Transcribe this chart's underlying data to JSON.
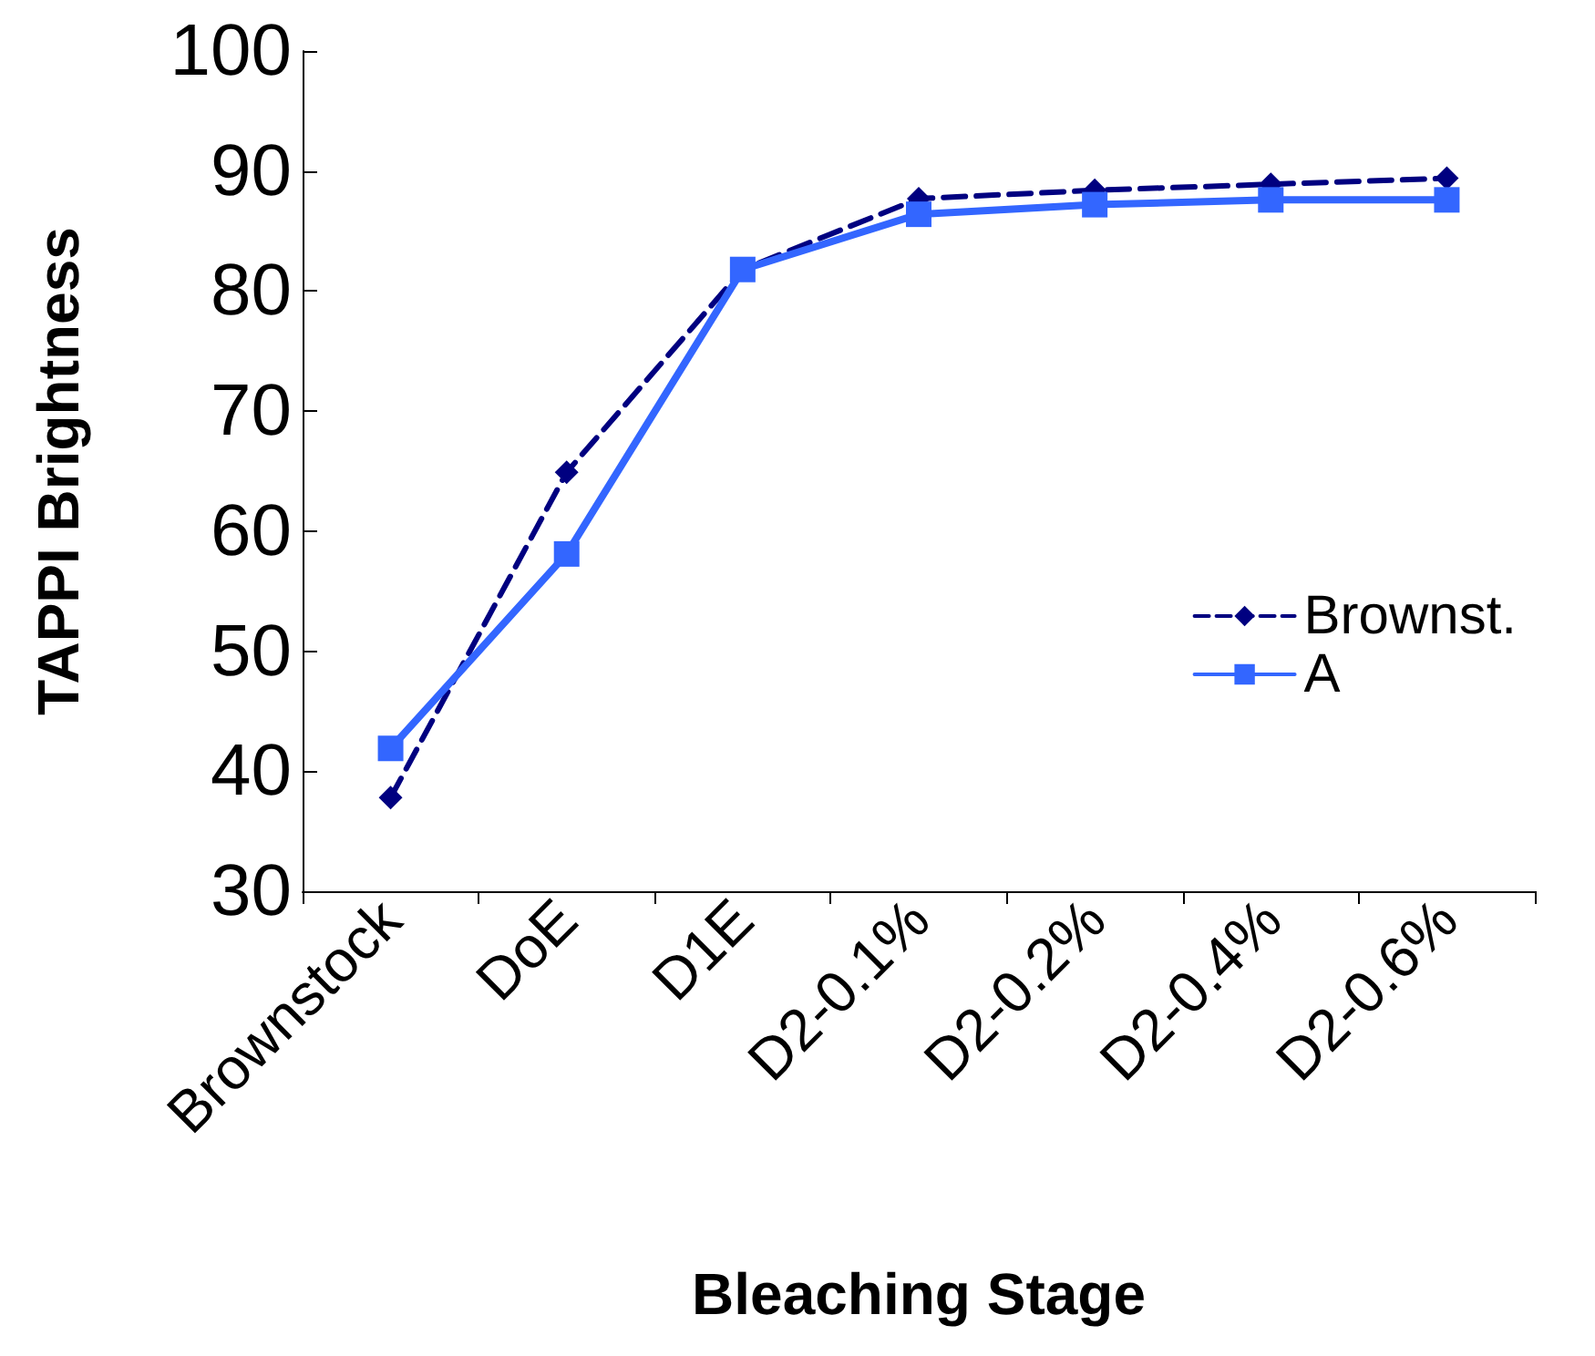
{
  "chart_data": {
    "type": "line",
    "xlabel": "Bleaching Stage",
    "ylabel": "TAPPI Brightness",
    "categories": [
      "Brownstock",
      "DoE",
      "D1E",
      "D2-0.1%",
      "D2-0.2%",
      "D2-0.4%",
      "D2-0.6%"
    ],
    "series": [
      {
        "name": "Brownst.",
        "color": "#000080",
        "values": [
          37.8,
          64.9,
          81.8,
          87.7,
          88.4,
          88.9,
          89.4
        ],
        "marker": "diamond",
        "line_style": "dashed"
      },
      {
        "name": "A",
        "color": "#3366ff",
        "values": [
          41.9,
          58.1,
          81.8,
          86.4,
          87.2,
          87.6,
          87.6
        ],
        "marker": "square",
        "line_style": "solid"
      }
    ],
    "ylim": [
      30,
      100
    ],
    "yticks": [
      30,
      40,
      50,
      60,
      70,
      80,
      90,
      100
    ],
    "grid": false,
    "legend": "right"
  }
}
